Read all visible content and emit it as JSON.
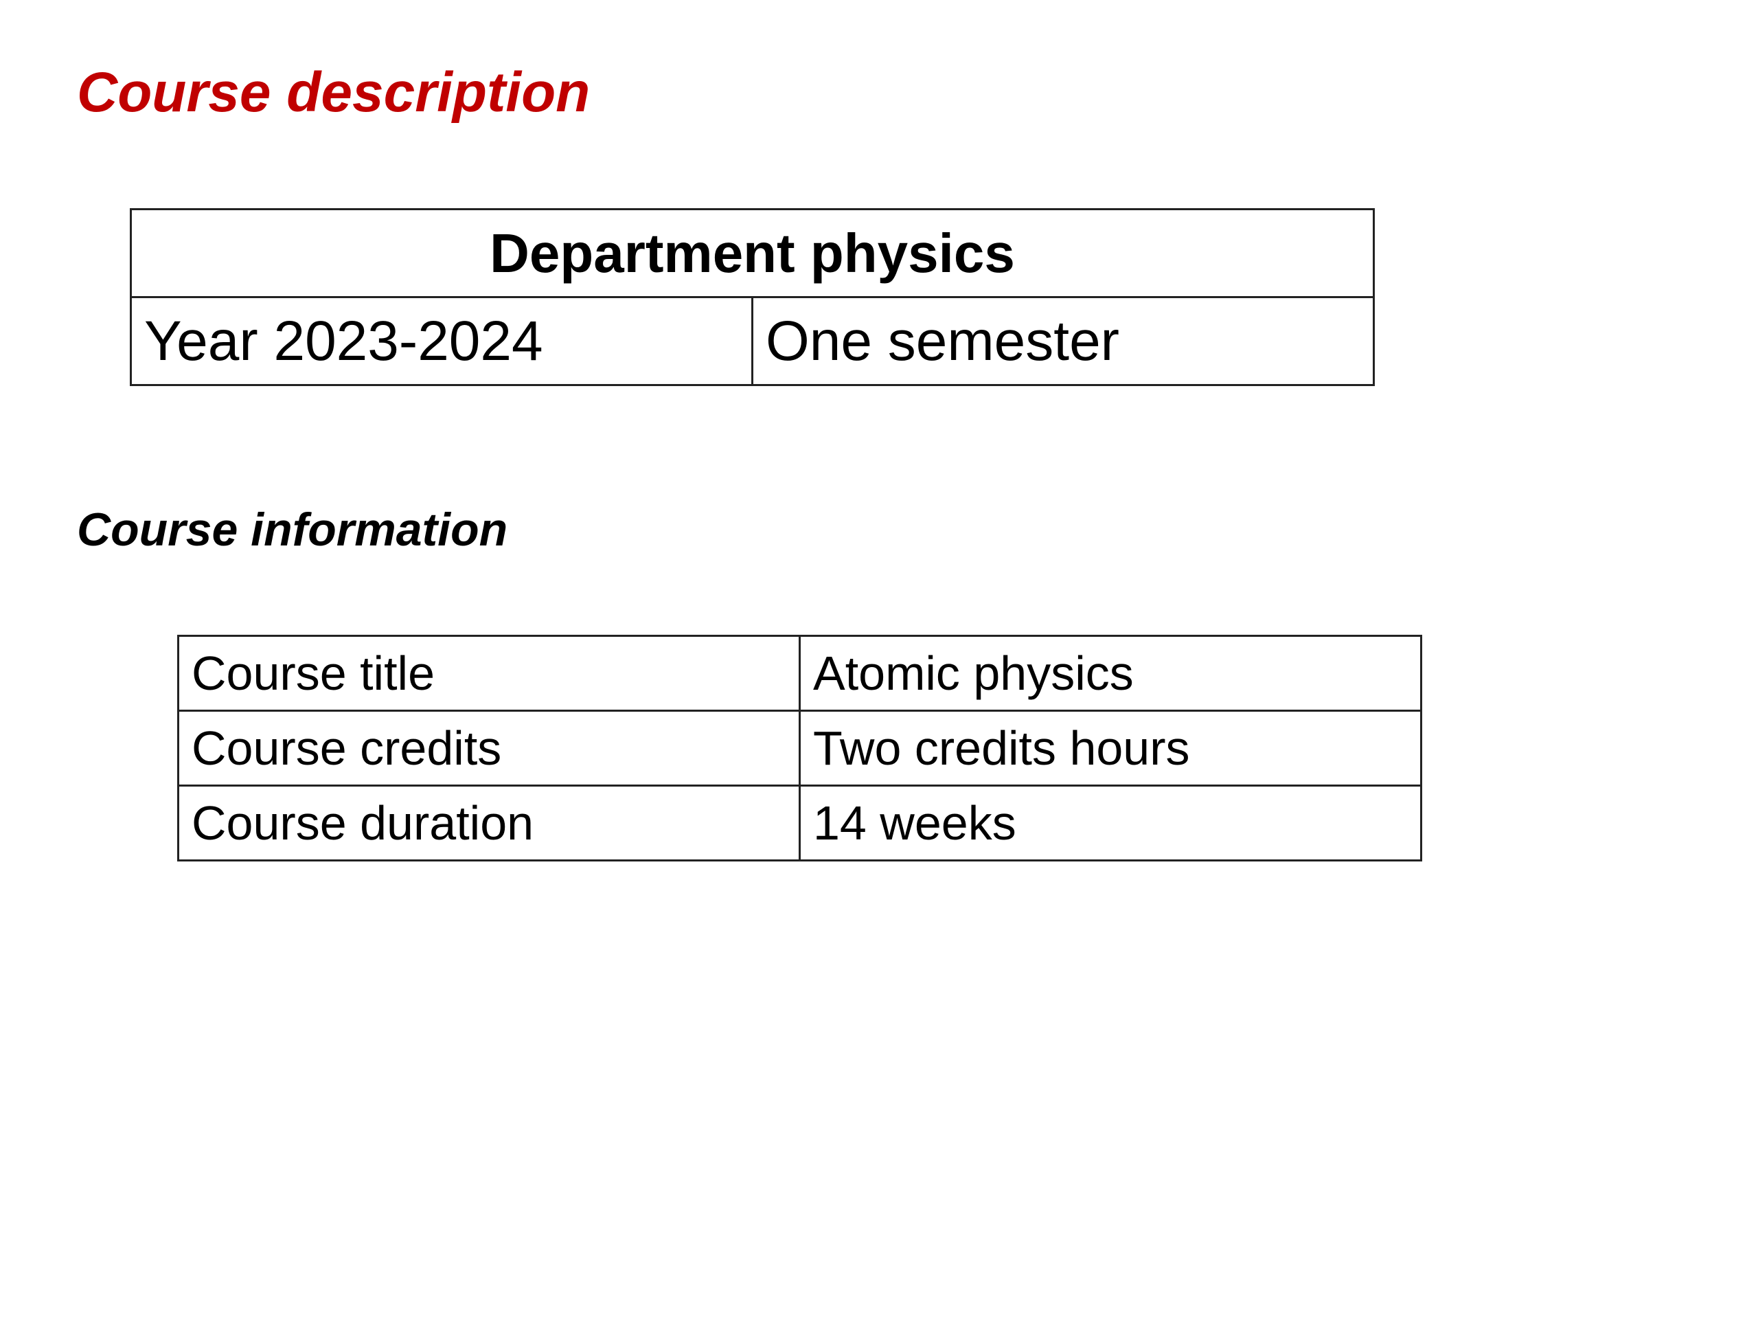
{
  "title": "Course description",
  "department_table": {
    "header": "Department physics",
    "year": "Year 2023-2024",
    "duration": "One semester"
  },
  "subtitle": "Course information",
  "info_table": {
    "rows": [
      {
        "label": "Course title",
        "value": "Atomic physics"
      },
      {
        "label": "Course credits",
        "value": "Two credits hours"
      },
      {
        "label": "Course duration",
        "value": "14 weeks"
      }
    ]
  },
  "colors": {
    "title": "#c00000",
    "text": "#000000",
    "border": "#222222"
  }
}
